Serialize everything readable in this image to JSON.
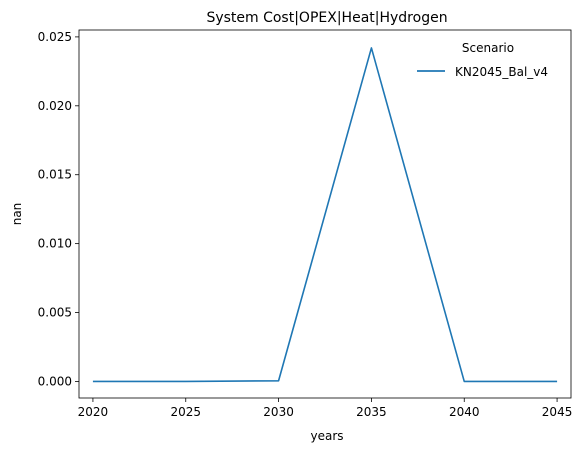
{
  "chart_data": {
    "type": "line",
    "title": "System Cost|OPEX|Heat|Hydrogen",
    "xlabel": "years",
    "ylabel": "nan",
    "x": [
      2020,
      2025,
      2030,
      2035,
      2040,
      2045
    ],
    "x_ticks": [
      "2020",
      "2025",
      "2030",
      "2035",
      "2040",
      "2045"
    ],
    "y_ticks": [
      "0.000",
      "0.005",
      "0.010",
      "0.015",
      "0.020",
      "0.025"
    ],
    "y_tick_values": [
      0,
      0.005,
      0.01,
      0.015,
      0.02,
      0.025
    ],
    "xlim": [
      2019.25,
      2045.75
    ],
    "ylim": [
      -0.0012,
      0.0255
    ],
    "grid": false,
    "legend": {
      "title": "Scenario",
      "placement": "top-right"
    },
    "series": [
      {
        "name": "KN2045_Bal_v4",
        "color": "#1f77b4",
        "values": [
          0.0,
          0.0,
          5e-05,
          0.0242,
          0.0,
          0.0
        ]
      }
    ]
  }
}
